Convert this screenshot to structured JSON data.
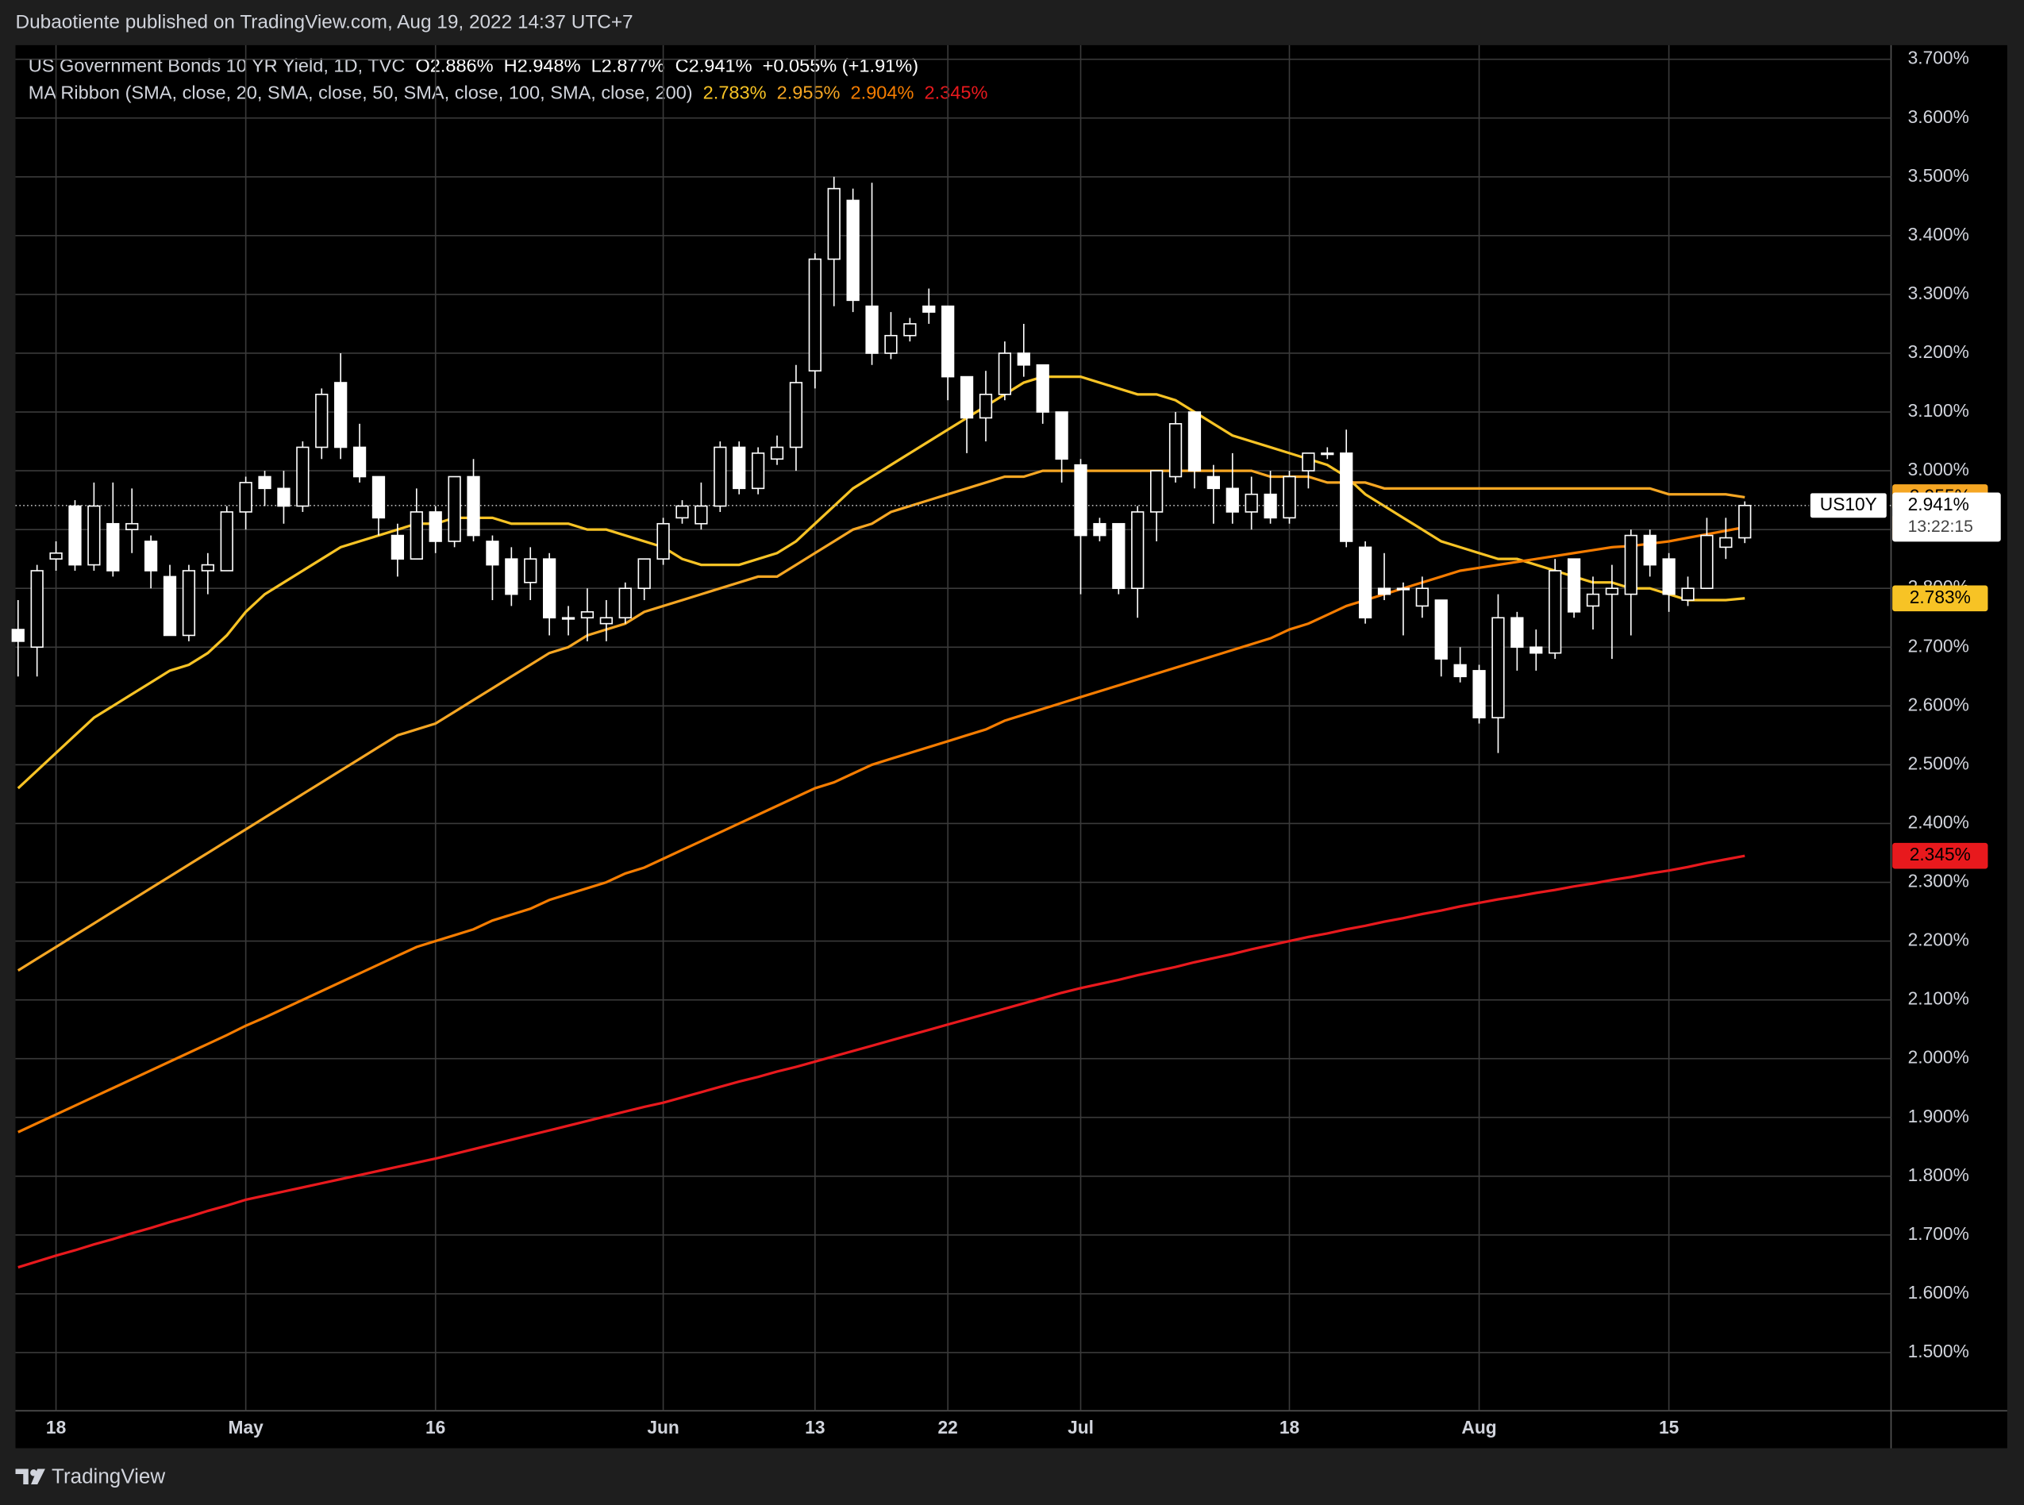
{
  "publisher": "Dubaotiente published on TradingView.com, Aug 19, 2022 14:37 UTC+7",
  "brand": "TradingView",
  "chart_data": {
    "type": "candlestick",
    "header": {
      "instrument": "US Government Bonds 10 YR Yield, 1D, TVC",
      "open": "O2.886%",
      "high": "H2.948%",
      "low": "L2.877%",
      "close": "C2.941%",
      "change": "+0.055% (+1.91%)"
    },
    "ma_legend": "MA Ribbon (SMA, close, 20, SMA, close, 50, SMA, close, 100, SMA, close, 200)",
    "symbol_tag": "US10Y",
    "last_label": "2.941%",
    "countdown": "13:22:15",
    "categories": [
      null,
      null,
      "18",
      null,
      null,
      null,
      null,
      null,
      null,
      null,
      null,
      null,
      "May",
      null,
      null,
      null,
      null,
      null,
      null,
      null,
      null,
      null,
      "16",
      null,
      null,
      null,
      null,
      null,
      null,
      null,
      null,
      null,
      null,
      null,
      "Jun",
      null,
      null,
      null,
      null,
      null,
      null,
      null,
      "13",
      null,
      null,
      null,
      null,
      null,
      null,
      "22",
      null,
      null,
      null,
      null,
      null,
      null,
      "Jul",
      null,
      null,
      null,
      null,
      null,
      null,
      null,
      null,
      null,
      null,
      "18",
      null,
      null,
      null,
      null,
      null,
      null,
      null,
      null,
      null,
      "Aug",
      null,
      null,
      null,
      null,
      null,
      null,
      null,
      null,
      null,
      "15",
      null,
      null,
      null,
      null
    ],
    "ohlc": {
      "open": [
        2.73,
        2.7,
        2.85,
        2.94,
        2.84,
        2.91,
        2.9,
        2.88,
        2.82,
        2.72,
        2.83,
        2.83,
        2.93,
        2.99,
        2.97,
        2.94,
        3.04,
        3.15,
        3.04,
        2.99,
        2.89,
        2.85,
        2.93,
        2.88,
        2.99,
        2.88,
        2.85,
        2.81,
        2.85,
        2.75,
        2.75,
        2.74,
        2.75,
        2.8,
        2.85,
        2.92,
        2.91,
        2.94,
        3.04,
        2.97,
        3.02,
        3.04,
        3.17,
        3.36,
        3.46,
        3.28,
        3.2,
        3.23,
        3.28,
        3.28,
        3.16,
        3.09,
        3.13,
        3.2,
        3.18,
        3.1,
        3.01,
        2.91,
        2.91,
        2.8,
        2.93,
        2.99,
        3.1,
        2.99,
        2.97,
        2.93,
        2.96,
        2.92,
        3.0,
        3.03,
        3.03,
        2.87,
        2.8,
        2.8,
        2.77,
        2.78,
        2.67,
        2.66,
        2.58,
        2.75,
        2.7,
        2.69,
        2.85,
        2.77,
        2.79,
        2.79,
        2.89,
        2.85,
        2.78,
        2.8,
        2.87,
        2.886
      ],
      "high": [
        2.78,
        2.84,
        2.88,
        2.95,
        2.98,
        2.98,
        2.97,
        2.89,
        2.84,
        2.84,
        2.86,
        2.94,
        2.99,
        3.0,
        3.0,
        3.05,
        3.14,
        3.2,
        3.08,
        2.99,
        2.91,
        2.97,
        2.94,
        2.99,
        3.02,
        2.89,
        2.87,
        2.87,
        2.86,
        2.77,
        2.8,
        2.78,
        2.81,
        2.85,
        2.92,
        2.95,
        2.98,
        3.05,
        3.05,
        3.04,
        3.06,
        3.18,
        3.37,
        3.5,
        3.48,
        3.49,
        3.27,
        3.26,
        3.31,
        3.28,
        3.16,
        3.17,
        3.22,
        3.25,
        3.18,
        3.1,
        3.02,
        2.92,
        2.91,
        2.94,
        3.0,
        3.1,
        3.1,
        3.01,
        3.03,
        2.99,
        3.0,
        3.0,
        3.03,
        3.04,
        3.07,
        2.88,
        2.86,
        2.81,
        2.82,
        2.78,
        2.7,
        2.67,
        2.79,
        2.76,
        2.73,
        2.85,
        2.85,
        2.82,
        2.84,
        2.9,
        2.9,
        2.86,
        2.82,
        2.92,
        2.92,
        2.948
      ],
      "low": [
        2.65,
        2.65,
        2.83,
        2.83,
        2.83,
        2.82,
        2.86,
        2.8,
        2.72,
        2.71,
        2.79,
        2.83,
        2.9,
        2.94,
        2.91,
        2.93,
        3.02,
        3.02,
        2.98,
        2.89,
        2.82,
        2.85,
        2.86,
        2.87,
        2.88,
        2.78,
        2.77,
        2.78,
        2.72,
        2.72,
        2.71,
        2.71,
        2.74,
        2.78,
        2.84,
        2.91,
        2.9,
        2.93,
        2.96,
        2.96,
        3.01,
        3.0,
        3.14,
        3.28,
        3.27,
        3.18,
        3.19,
        3.22,
        3.25,
        3.12,
        3.03,
        3.05,
        3.12,
        3.16,
        3.08,
        2.98,
        2.79,
        2.88,
        2.79,
        2.75,
        2.88,
        2.98,
        2.97,
        2.91,
        2.91,
        2.9,
        2.91,
        2.91,
        2.97,
        3.02,
        2.87,
        2.74,
        2.78,
        2.72,
        2.75,
        2.65,
        2.64,
        2.57,
        2.52,
        2.66,
        2.66,
        2.68,
        2.75,
        2.73,
        2.68,
        2.72,
        2.82,
        2.76,
        2.77,
        2.8,
        2.85,
        2.877
      ],
      "close": [
        2.71,
        2.83,
        2.86,
        2.84,
        2.94,
        2.83,
        2.91,
        2.83,
        2.72,
        2.83,
        2.84,
        2.93,
        2.98,
        2.97,
        2.94,
        3.04,
        3.13,
        3.04,
        2.99,
        2.92,
        2.85,
        2.93,
        2.88,
        2.99,
        2.89,
        2.84,
        2.79,
        2.85,
        2.75,
        2.75,
        2.76,
        2.75,
        2.8,
        2.85,
        2.91,
        2.94,
        2.94,
        3.04,
        2.97,
        3.03,
        3.04,
        3.15,
        3.36,
        3.48,
        3.29,
        3.2,
        3.23,
        3.25,
        3.27,
        3.16,
        3.09,
        3.13,
        3.2,
        3.18,
        3.1,
        3.02,
        2.89,
        2.89,
        2.8,
        2.93,
        3.0,
        3.08,
        3.0,
        2.97,
        2.93,
        2.96,
        2.92,
        2.99,
        3.03,
        3.03,
        2.88,
        2.75,
        2.79,
        2.8,
        2.8,
        2.68,
        2.65,
        2.58,
        2.75,
        2.7,
        2.69,
        2.83,
        2.76,
        2.79,
        2.8,
        2.89,
        2.84,
        2.79,
        2.8,
        2.89,
        2.886,
        2.941
      ],
      "up_color": "#000000",
      "down_color": "#ffffff",
      "wick_color": "#ffffff"
    },
    "series": [
      {
        "value_label": "2.783%",
        "color": "#f7c325",
        "values": [
          2.46,
          2.49,
          2.52,
          2.55,
          2.58,
          2.6,
          2.62,
          2.64,
          2.66,
          2.67,
          2.69,
          2.72,
          2.76,
          2.79,
          2.81,
          2.83,
          2.85,
          2.87,
          2.88,
          2.89,
          2.9,
          2.91,
          2.91,
          2.92,
          2.92,
          2.92,
          2.91,
          2.91,
          2.91,
          2.91,
          2.9,
          2.9,
          2.89,
          2.88,
          2.87,
          2.85,
          2.84,
          2.84,
          2.84,
          2.85,
          2.86,
          2.88,
          2.91,
          2.94,
          2.97,
          2.99,
          3.01,
          3.03,
          3.05,
          3.07,
          3.09,
          3.11,
          3.13,
          3.15,
          3.16,
          3.16,
          3.16,
          3.15,
          3.14,
          3.13,
          3.13,
          3.12,
          3.1,
          3.08,
          3.06,
          3.05,
          3.04,
          3.03,
          3.02,
          3.01,
          2.99,
          2.96,
          2.94,
          2.92,
          2.9,
          2.88,
          2.87,
          2.86,
          2.85,
          2.85,
          2.84,
          2.83,
          2.82,
          2.81,
          2.81,
          2.8,
          2.8,
          2.79,
          2.78,
          2.78,
          2.78,
          2.783
        ]
      },
      {
        "value_label": "2.955%",
        "color": "#f5a623",
        "values": [
          2.15,
          2.17,
          2.19,
          2.21,
          2.23,
          2.25,
          2.27,
          2.29,
          2.31,
          2.33,
          2.35,
          2.37,
          2.39,
          2.41,
          2.43,
          2.45,
          2.47,
          2.49,
          2.51,
          2.53,
          2.55,
          2.56,
          2.57,
          2.59,
          2.61,
          2.63,
          2.65,
          2.67,
          2.69,
          2.7,
          2.72,
          2.73,
          2.74,
          2.76,
          2.77,
          2.78,
          2.79,
          2.8,
          2.81,
          2.82,
          2.82,
          2.84,
          2.86,
          2.88,
          2.9,
          2.91,
          2.93,
          2.94,
          2.95,
          2.96,
          2.97,
          2.98,
          2.99,
          2.99,
          3.0,
          3.0,
          3.0,
          3.0,
          3.0,
          3.0,
          3.0,
          3.0,
          3.0,
          3.0,
          3.0,
          3.0,
          2.99,
          2.99,
          2.99,
          2.98,
          2.98,
          2.98,
          2.97,
          2.97,
          2.97,
          2.97,
          2.97,
          2.97,
          2.97,
          2.97,
          2.97,
          2.97,
          2.97,
          2.97,
          2.97,
          2.97,
          2.97,
          2.96,
          2.96,
          2.96,
          2.96,
          2.955
        ]
      },
      {
        "value_label": "2.904%",
        "color": "#f57c00",
        "values": [
          1.875,
          1.89,
          1.905,
          1.92,
          1.935,
          1.95,
          1.965,
          1.98,
          1.995,
          2.01,
          2.025,
          2.04,
          2.056,
          2.07,
          2.085,
          2.1,
          2.115,
          2.13,
          2.145,
          2.16,
          2.175,
          2.19,
          2.2,
          2.21,
          2.22,
          2.235,
          2.245,
          2.255,
          2.27,
          2.28,
          2.29,
          2.3,
          2.315,
          2.325,
          2.34,
          2.355,
          2.37,
          2.385,
          2.4,
          2.415,
          2.43,
          2.445,
          2.46,
          2.47,
          2.485,
          2.5,
          2.51,
          2.52,
          2.53,
          2.54,
          2.55,
          2.56,
          2.575,
          2.585,
          2.595,
          2.605,
          2.615,
          2.625,
          2.635,
          2.645,
          2.655,
          2.665,
          2.675,
          2.685,
          2.695,
          2.705,
          2.715,
          2.73,
          2.74,
          2.755,
          2.77,
          2.78,
          2.79,
          2.8,
          2.81,
          2.82,
          2.83,
          2.835,
          2.84,
          2.845,
          2.85,
          2.855,
          2.86,
          2.865,
          2.87,
          2.872,
          2.876,
          2.88,
          2.886,
          2.892,
          2.898,
          2.904
        ]
      },
      {
        "value_label": "2.345%",
        "color": "#e8191d",
        "values": [
          1.645,
          1.655,
          1.665,
          1.674,
          1.684,
          1.693,
          1.703,
          1.712,
          1.722,
          1.731,
          1.741,
          1.75,
          1.76,
          1.767,
          1.774,
          1.781,
          1.788,
          1.795,
          1.802,
          1.809,
          1.816,
          1.823,
          1.83,
          1.838,
          1.846,
          1.854,
          1.862,
          1.87,
          1.878,
          1.886,
          1.894,
          1.902,
          1.91,
          1.918,
          1.925,
          1.934,
          1.943,
          1.952,
          1.961,
          1.969,
          1.978,
          1.986,
          1.995,
          2.004,
          2.013,
          2.022,
          2.031,
          2.04,
          2.049,
          2.058,
          2.067,
          2.076,
          2.085,
          2.094,
          2.103,
          2.112,
          2.12,
          2.127,
          2.134,
          2.142,
          2.149,
          2.156,
          2.164,
          2.171,
          2.178,
          2.186,
          2.193,
          2.2,
          2.207,
          2.213,
          2.22,
          2.226,
          2.233,
          2.239,
          2.246,
          2.252,
          2.259,
          2.265,
          2.271,
          2.276,
          2.282,
          2.287,
          2.293,
          2.298,
          2.304,
          2.309,
          2.315,
          2.32,
          2.326,
          2.333,
          2.339,
          2.345
        ]
      }
    ],
    "ylim": [
      1.401,
      3.724
    ],
    "yticks": [
      {
        "value": 1.5,
        "label": "1.500%"
      },
      {
        "value": 1.6,
        "label": "1.600%"
      },
      {
        "value": 1.7,
        "label": "1.700%"
      },
      {
        "value": 1.8,
        "label": "1.800%"
      },
      {
        "value": 1.9,
        "label": "1.900%"
      },
      {
        "value": 2.0,
        "label": "2.000%"
      },
      {
        "value": 2.1,
        "label": "2.100%"
      },
      {
        "value": 2.2,
        "label": "2.200%"
      },
      {
        "value": 2.3,
        "label": "2.300%"
      },
      {
        "value": 2.4,
        "label": "2.400%"
      },
      {
        "value": 2.5,
        "label": "2.500%"
      },
      {
        "value": 2.6,
        "label": "2.600%"
      },
      {
        "value": 2.7,
        "label": "2.700%"
      },
      {
        "value": 2.8,
        "label": "2.800%"
      },
      {
        "value": 2.9,
        "label": "2.900%"
      },
      {
        "value": 3.0,
        "label": "3.000%"
      },
      {
        "value": 3.1,
        "label": "3.100%"
      },
      {
        "value": 3.2,
        "label": "3.200%"
      },
      {
        "value": 3.3,
        "label": "3.300%"
      },
      {
        "value": 3.4,
        "label": "3.400%"
      },
      {
        "value": 3.5,
        "label": "3.500%"
      },
      {
        "value": 3.6,
        "label": "3.600%"
      },
      {
        "value": 3.7,
        "label": "3.700%"
      }
    ],
    "grid": true
  }
}
